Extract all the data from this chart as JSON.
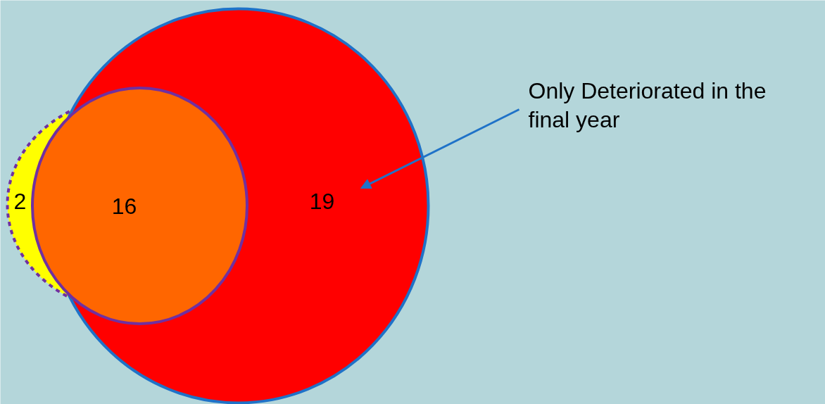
{
  "chart_data": {
    "type": "other",
    "categories": [
      null,
      null,
      null
    ],
    "values": [
      2,
      16,
      19
    ],
    "data_labels": true,
    "colors": [
      "#ffff00",
      "#ff6600",
      "#ff0000"
    ],
    "annotations": [
      "Only Deteriorated in the final year"
    ]
  }
}
